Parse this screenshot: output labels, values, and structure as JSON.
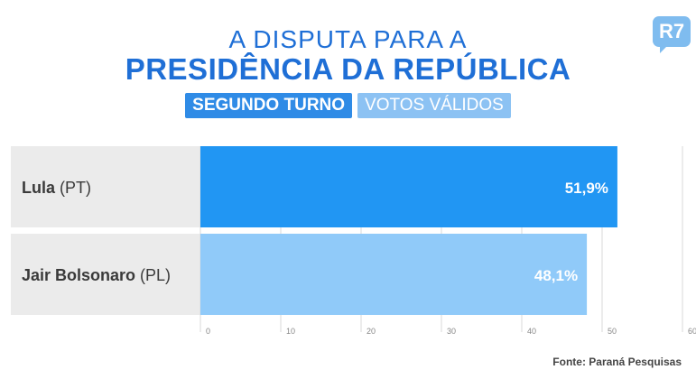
{
  "header": {
    "title_top": "A DISPUTA PARA A",
    "title_main": "PRESIDÊNCIA DA REPÚBLICA",
    "tag_round": "SEGUNDO TURNO",
    "tag_votes": "VOTOS VÁLIDOS"
  },
  "logo": {
    "text": "R7"
  },
  "footer": {
    "source": "Fonte: Paraná Pesquisas"
  },
  "colors": {
    "accent": "#1f6fd6",
    "bar_primary": "#2196f3",
    "bar_secondary": "#90caf9",
    "row_background": "#ebebeb",
    "text_dark": "#3a3a3a"
  },
  "chart_data": {
    "type": "bar",
    "orientation": "horizontal",
    "categories": [
      {
        "name": "Lula",
        "party": "(PT)"
      },
      {
        "name": "Jair Bolsonaro",
        "party": "(PL)"
      }
    ],
    "values": [
      51.9,
      48.1
    ],
    "value_labels": [
      "51,9%",
      "48,1%"
    ],
    "xlim": [
      0,
      60
    ],
    "ticks": [
      0,
      10,
      20,
      30,
      40,
      50,
      60
    ],
    "grid": true,
    "legend": "none"
  }
}
